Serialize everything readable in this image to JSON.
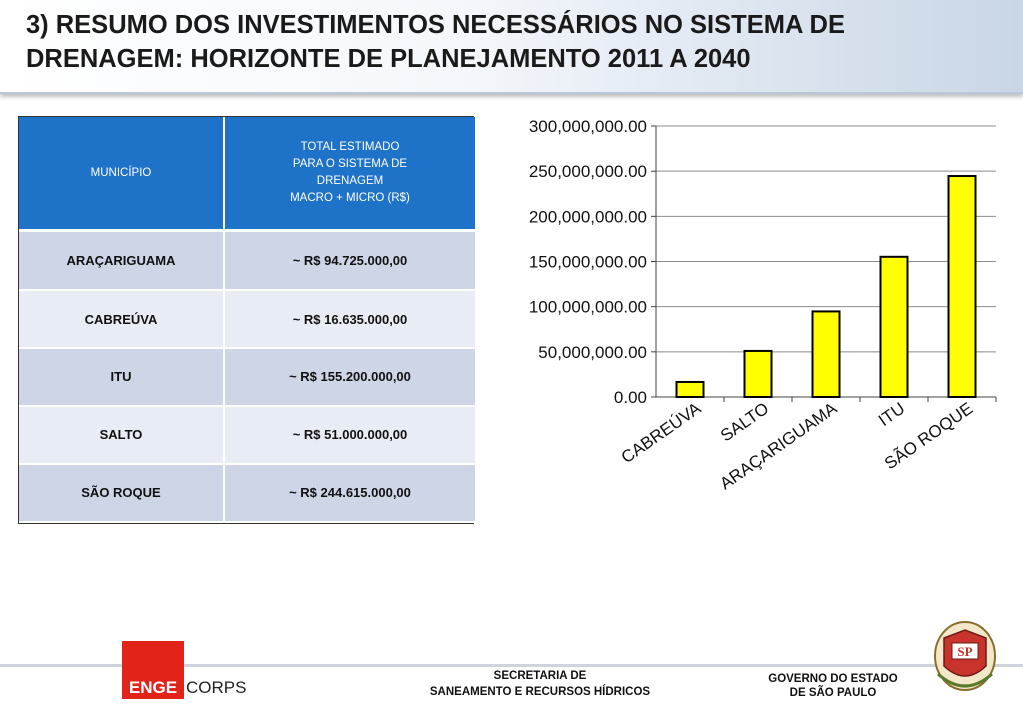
{
  "header": {
    "title": "3) RESUMO DOS INVESTIMENTOS NECESSÁRIOS NO SISTEMA DE DRENAGEM: HORIZONTE DE PLANEJAMENTO 2011 A 2040"
  },
  "table": {
    "col1_header": "MUNICÍPIO",
    "col2_header_lines": [
      "TOTAL ESTIMADO",
      "PARA O SISTEMA DE",
      "DRENAGEM",
      "MACRO + MICRO (R$)"
    ],
    "rows": [
      {
        "municipio": "ARAÇARIGUAMA",
        "total": "~ R$ 94.725.000,00"
      },
      {
        "municipio": "CABREÚVA",
        "total": "~  R$ 16.635.000,00"
      },
      {
        "municipio": "ITU",
        "total": "~ R$  155.200.000,00"
      },
      {
        "municipio": "SALTO",
        "total": "~ R$ 51.000.000,00"
      },
      {
        "municipio": "SÃO ROQUE",
        "total": "~ R$ 244.615.000,00"
      }
    ]
  },
  "chart_data": {
    "type": "bar",
    "title": "",
    "xlabel": "",
    "ylabel": "",
    "categories": [
      "CABREÚVA",
      "SALTO",
      "ARAÇARIGUAMA",
      "ITU",
      "SÃO ROQUE"
    ],
    "values": [
      16635000,
      51000000,
      94725000,
      155200000,
      244615000
    ],
    "ylim": [
      0,
      300000000
    ],
    "yticks": [
      0,
      50000000,
      100000000,
      150000000,
      200000000,
      250000000,
      300000000
    ],
    "ytick_labels": [
      "0.00",
      "50,000,000.00",
      "100,000,000.00",
      "150,000,000.00",
      "200,000,000.00",
      "250,000,000.00",
      "300,000,000.00"
    ],
    "grid": true,
    "legend": "none",
    "bar_color": "#ffff00",
    "bar_edge_color": "#000000"
  },
  "footer": {
    "logo_enge": "ENGE",
    "logo_corps": "CORPS",
    "secretaria_lines": [
      "SECRETARIA DE",
      "SANEAMENTO E RECURSOS HÍDRICOS"
    ],
    "governo_lines": [
      "GOVERNO DO ESTADO",
      "DE SÃO PAULO"
    ],
    "seal_text": "SP"
  },
  "colors": {
    "table_header": "#1e73c8",
    "row_odd": "#cdd5e6",
    "row_even": "#e8ecf4",
    "logo_red": "#e2231a"
  }
}
